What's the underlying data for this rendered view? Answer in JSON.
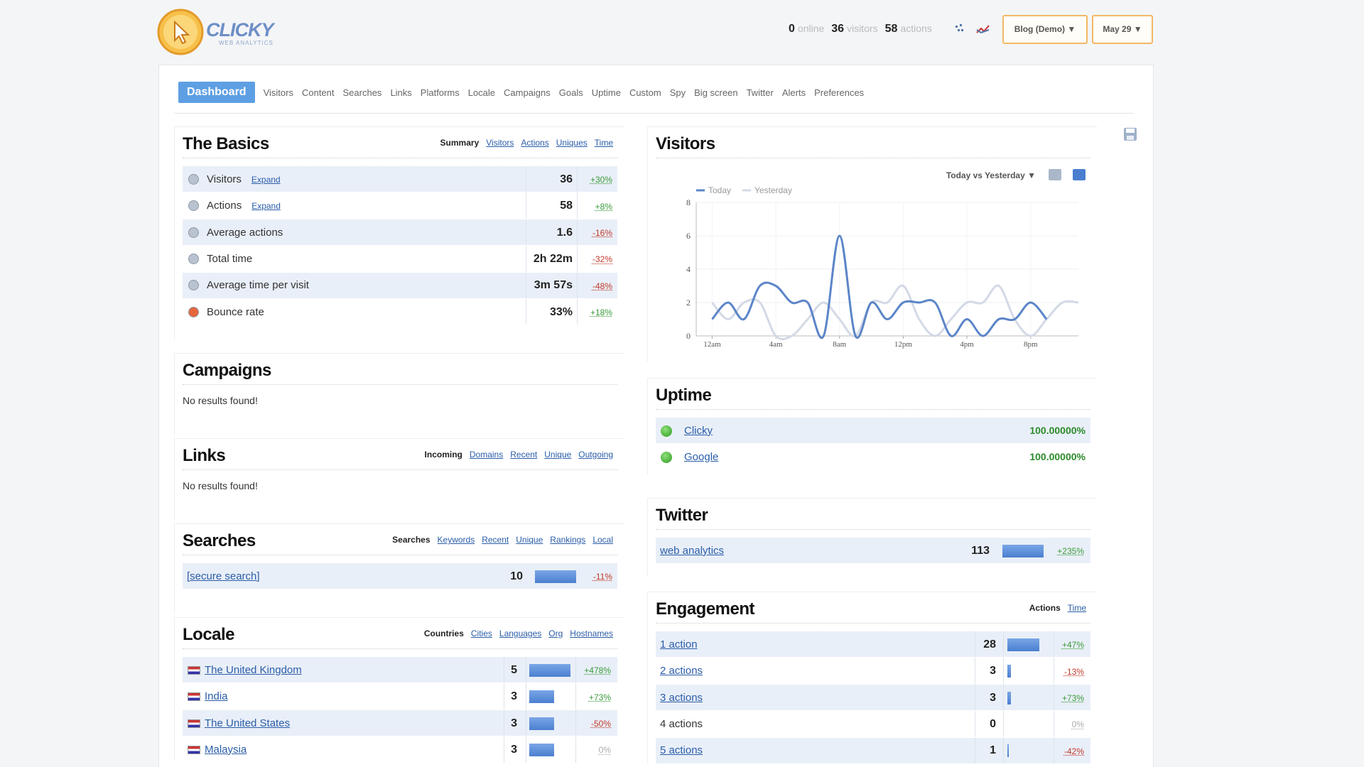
{
  "header": {
    "logo": "CLICKY",
    "logo_sub": "WEB ANALYTICS",
    "stats": [
      {
        "value": 0,
        "label": "online"
      },
      {
        "value": 36,
        "label": "visitors"
      },
      {
        "value": 58,
        "label": "actions"
      }
    ],
    "site": "Blog (Demo) ▼",
    "date": "May 29 ▼"
  },
  "nav": [
    "Dashboard",
    "Visitors",
    "Content",
    "Searches",
    "Links",
    "Platforms",
    "Locale",
    "Campaigns",
    "Goals",
    "Uptime",
    "Custom",
    "Spy",
    "Big screen",
    "Twitter",
    "Alerts",
    "Preferences"
  ],
  "basics": {
    "title": "The Basics",
    "tabs": [
      "Summary",
      "Visitors",
      "Actions",
      "Uniques",
      "Time"
    ],
    "rows": [
      {
        "label": "Visitors",
        "link": "Expand",
        "value": 36,
        "change": "+30%"
      },
      {
        "label": "Actions",
        "link": "Expand",
        "value": 58,
        "change": "+8%"
      },
      {
        "label": "Average actions",
        "value": 1.6,
        "change": "-16%"
      },
      {
        "label": "Total time",
        "value": "2h 22m",
        "change": "-32%"
      },
      {
        "label": "Average time per visit",
        "value": "3m 57s",
        "change": "-48%"
      },
      {
        "label": "Bounce rate",
        "value": "33%",
        "change": "+18%"
      }
    ]
  },
  "campaigns": {
    "title": "Campaigns",
    "empty": "No results found!"
  },
  "links": {
    "title": "Links",
    "tabs": [
      "Incoming",
      "Domains",
      "Recent",
      "Unique",
      "Outgoing"
    ],
    "empty": "No results found!"
  },
  "searches": {
    "title": "Searches",
    "tabs": [
      "Searches",
      "Keywords",
      "Recent",
      "Unique",
      "Rankings",
      "Local"
    ],
    "rows": [
      {
        "label": "[secure search]",
        "value": 10,
        "change": "-11%"
      }
    ]
  },
  "locale": {
    "title": "Locale",
    "tabs": [
      "Countries",
      "Cities",
      "Languages",
      "Org",
      "Hostnames"
    ],
    "rows": [
      {
        "label": "The United Kingdom",
        "value": 5,
        "change": "+478%"
      },
      {
        "label": "India",
        "value": 3,
        "change": "+73%"
      },
      {
        "label": "The United States",
        "value": 3,
        "change": "-50%"
      },
      {
        "label": "Malaysia",
        "value": 3,
        "change": "0%"
      }
    ]
  },
  "visitors": {
    "title": "Visitors",
    "dropdown": "Today vs Yesterday ▼",
    "chart": {
      "type": "line",
      "series": [
        {
          "name": "Today",
          "color": "#5b85c8",
          "x": [
            0,
            1,
            2,
            3,
            4,
            5,
            6,
            7,
            8,
            9,
            10,
            11,
            12,
            13,
            14,
            15,
            16,
            17,
            18,
            19,
            20,
            21
          ],
          "values": [
            1,
            2,
            1,
            3,
            3,
            2,
            2,
            0,
            6,
            0,
            2,
            1,
            2,
            2,
            2,
            0,
            1,
            0,
            1,
            1,
            2,
            1
          ]
        },
        {
          "name": "Yesterday",
          "color": "#d3d9e6",
          "x": [
            0,
            1,
            2,
            3,
            4,
            5,
            6,
            7,
            8,
            9,
            10,
            11,
            12,
            13,
            14,
            15,
            16,
            17,
            18,
            19,
            20,
            21,
            22,
            23
          ],
          "values": [
            2,
            1,
            2,
            2,
            0,
            0,
            1,
            2,
            1,
            0,
            2,
            2,
            3,
            1,
            0,
            1,
            2,
            2,
            3,
            1,
            0,
            1,
            2,
            2
          ]
        }
      ],
      "xlim": [
        -1,
        23
      ],
      "xticks": [
        {
          "value": 0,
          "label": "12am"
        },
        {
          "value": 4,
          "label": "4am"
        },
        {
          "value": 8,
          "label": "8am"
        },
        {
          "value": 12,
          "label": "12pm"
        },
        {
          "value": 16,
          "label": "4pm"
        },
        {
          "value": 20,
          "label": "8pm"
        }
      ],
      "ylim": [
        0,
        8
      ],
      "yticks": [
        0,
        2,
        4,
        6,
        8
      ],
      "grid": true
    }
  },
  "uptime": {
    "title": "Uptime",
    "rows": [
      {
        "label": "Clicky",
        "value": "100.00000%"
      },
      {
        "label": "Google",
        "value": "100.00000%"
      }
    ]
  },
  "twitter": {
    "title": "Twitter",
    "rows": [
      {
        "label": "web analytics",
        "value": 113,
        "change": "+235%"
      }
    ]
  },
  "engagement": {
    "title": "Engagement",
    "tabs": [
      "Actions",
      "Time"
    ],
    "rows": [
      {
        "label": "1 action",
        "link": true,
        "value": 28,
        "change": "+47%"
      },
      {
        "label": "2 actions",
        "link": true,
        "value": 3,
        "change": "-13%"
      },
      {
        "label": "3 actions",
        "link": true,
        "value": 3,
        "change": "+73%"
      },
      {
        "label": "4 actions",
        "link": false,
        "value": 0,
        "change": "0%"
      },
      {
        "label": "5 actions",
        "link": true,
        "value": 1,
        "change": "-42%"
      }
    ]
  }
}
